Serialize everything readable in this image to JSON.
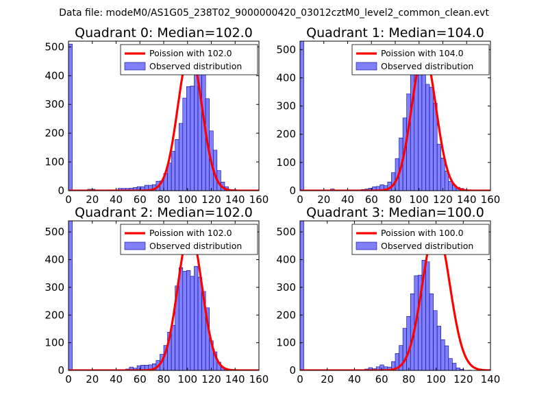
{
  "suptitle": "Data file: modeM0/AS1G05_238T02_9000000420_03012cztM0_level2_common_clean.evt",
  "colors": {
    "bar_fill": "#8080ff",
    "bar_edge": "#00008b",
    "fit_line": "#ff0000"
  },
  "chart_data": [
    {
      "type": "bar",
      "title": "Quadrant 0: Median=102.0",
      "xlim": [
        0,
        160
      ],
      "ylim": [
        0,
        520
      ],
      "xticks": [
        0,
        20,
        40,
        60,
        80,
        100,
        120,
        140,
        160
      ],
      "yticks": [
        0,
        100,
        200,
        300,
        400,
        500
      ],
      "bin_start": 0,
      "bin_width": 3.2,
      "values": [
        510,
        0,
        1,
        0,
        1,
        5,
        5,
        3,
        2,
        1,
        3,
        3,
        3,
        8,
        8,
        8,
        9,
        11,
        14,
        14,
        19,
        19,
        21,
        33,
        34,
        60,
        96,
        137,
        178,
        234,
        322,
        362,
        364,
        475,
        441,
        425,
        320,
        208,
        141,
        70,
        30,
        14,
        4,
        4,
        0,
        0,
        0,
        0,
        0,
        0
      ],
      "legend": [
        "Poission with 102.0",
        "Observed distribution"
      ],
      "fit": {
        "label": "Poission with 102.0",
        "mean": 102.0,
        "peak": 485
      }
    },
    {
      "type": "bar",
      "title": "Quadrant 1: Median=104.0",
      "xlim": [
        0,
        160
      ],
      "ylim": [
        0,
        530
      ],
      "xticks": [
        0,
        20,
        40,
        60,
        80,
        100,
        120,
        140,
        160
      ],
      "yticks": [
        0,
        100,
        200,
        300,
        400,
        500
      ],
      "bin_start": 0,
      "bin_width": 3.2,
      "values": [
        530,
        0,
        0,
        0,
        1,
        0,
        0,
        0,
        6,
        1,
        0,
        0,
        3,
        3,
        1,
        3,
        4,
        6,
        9,
        14,
        15,
        21,
        18,
        31,
        64,
        114,
        187,
        258,
        343,
        421,
        468,
        491,
        483,
        377,
        367,
        310,
        165,
        116,
        70,
        33,
        20,
        12,
        8,
        3,
        1,
        0,
        0,
        0,
        0,
        0
      ],
      "legend": [
        "Poission with 104.0",
        "Observed distribution"
      ],
      "fit": {
        "label": "Poission with 104.0",
        "mean": 104.0,
        "peak": 490
      }
    },
    {
      "type": "bar",
      "title": "Quadrant 2: Median=102.0",
      "xlim": [
        0,
        160
      ],
      "ylim": [
        0,
        540
      ],
      "xticks": [
        0,
        20,
        40,
        60,
        80,
        100,
        120,
        140,
        160
      ],
      "yticks": [
        0,
        100,
        200,
        300,
        400,
        500
      ],
      "bin_start": 0,
      "bin_width": 3.2,
      "values": [
        540,
        0,
        0,
        3,
        0,
        0,
        0,
        0,
        0,
        0,
        0,
        0,
        0,
        2,
        2,
        5,
        12,
        8,
        17,
        19,
        19,
        20,
        24,
        36,
        58,
        90,
        138,
        163,
        305,
        371,
        358,
        361,
        340,
        376,
        337,
        285,
        226,
        107,
        67,
        30,
        11,
        4,
        4,
        0,
        1,
        0,
        0,
        0,
        0,
        0
      ],
      "legend": [
        "Poission with 102.0",
        "Observed distribution"
      ],
      "fit": {
        "label": "Poission with 102.0",
        "mean": 102.0,
        "peak": 505
      }
    },
    {
      "type": "bar",
      "title": "Quadrant 3: Median=100.0",
      "xlim": [
        0,
        140
      ],
      "ylim": [
        0,
        540
      ],
      "xticks": [
        0,
        20,
        40,
        60,
        80,
        100,
        120,
        140
      ],
      "yticks": [
        0,
        100,
        200,
        300,
        400,
        500
      ],
      "bin_start": 0,
      "bin_width": 2.8,
      "values": [
        540,
        0,
        0,
        0,
        0,
        0,
        0,
        0,
        0,
        0,
        0,
        0,
        0,
        0,
        0,
        0,
        1,
        5,
        10,
        6,
        13,
        20,
        13,
        12,
        32,
        61,
        90,
        152,
        195,
        277,
        342,
        344,
        398,
        392,
        277,
        216,
        160,
        111,
        89,
        43,
        26,
        9,
        4,
        0,
        1,
        0,
        0,
        0,
        0,
        0
      ],
      "legend": [
        "Poission with 100.0",
        "Observed distribution"
      ],
      "fit": {
        "label": "Poission with 100.0",
        "mean": 100.0,
        "peak": 518
      }
    }
  ]
}
